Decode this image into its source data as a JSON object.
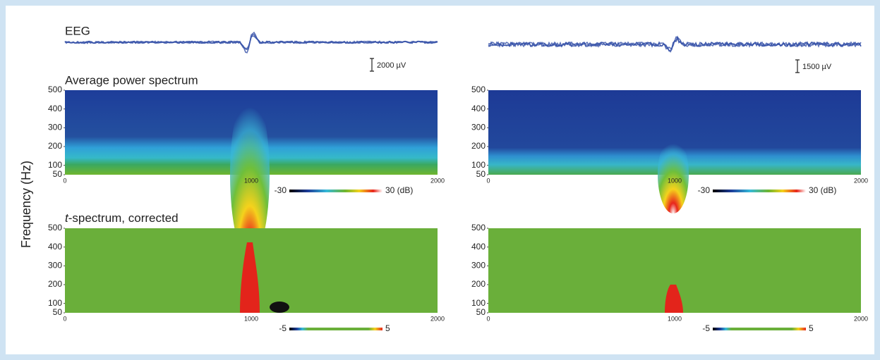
{
  "figure": {
    "eeg_title": "EEG",
    "spectrum_title": "Average power spectrum",
    "t_spectrum_title": {
      "italic": "t",
      "rest": "-spectrum, corrected"
    },
    "y_axis_label": "Frequency (Hz)",
    "yticks": [
      "500",
      "400",
      "300",
      "200",
      "100",
      "50"
    ],
    "xticks": [
      "0",
      "1000",
      "2000"
    ],
    "columns": [
      {
        "scale_bar": "2000 µV"
      },
      {
        "scale_bar": "1500 µV"
      }
    ],
    "power_colorbar": {
      "min": "-30",
      "max": "30 (dB)"
    },
    "t_colorbar": {
      "min": "-5",
      "max": "5"
    }
  }
}
